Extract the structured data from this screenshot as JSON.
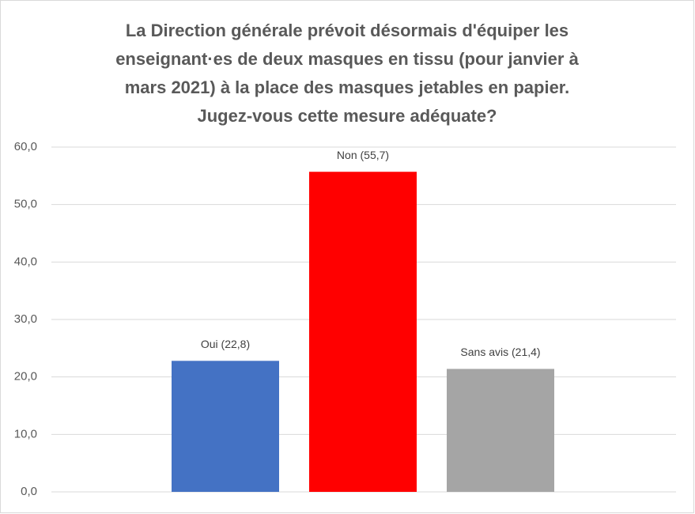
{
  "chart_data": {
    "type": "bar",
    "title": [
      "La Direction générale prévoit désormais d'équiper les",
      "enseignant·es de deux masques en tissu (pour janvier à",
      "mars 2021) à la place des masques jetables en papier.",
      "Jugez-vous cette mesure adéquate?"
    ],
    "values": [
      22.8,
      55.7,
      21.4
    ],
    "value_labels": [
      "Oui (22,8)",
      "Non (55,7)",
      "Sans avis (21,4)"
    ],
    "colors": [
      "#4472c4",
      "#ff0000",
      "#a5a5a5"
    ],
    "ylim": [
      0,
      60
    ],
    "yticks": [
      {
        "value": 0,
        "label": "0,0"
      },
      {
        "value": 10,
        "label": "10,0"
      },
      {
        "value": 20,
        "label": "20,0"
      },
      {
        "value": 30,
        "label": "30,0"
      },
      {
        "value": 40,
        "label": "40,0"
      },
      {
        "value": 50,
        "label": "50,0"
      },
      {
        "value": 60,
        "label": "60,0"
      }
    ],
    "grid": true
  }
}
